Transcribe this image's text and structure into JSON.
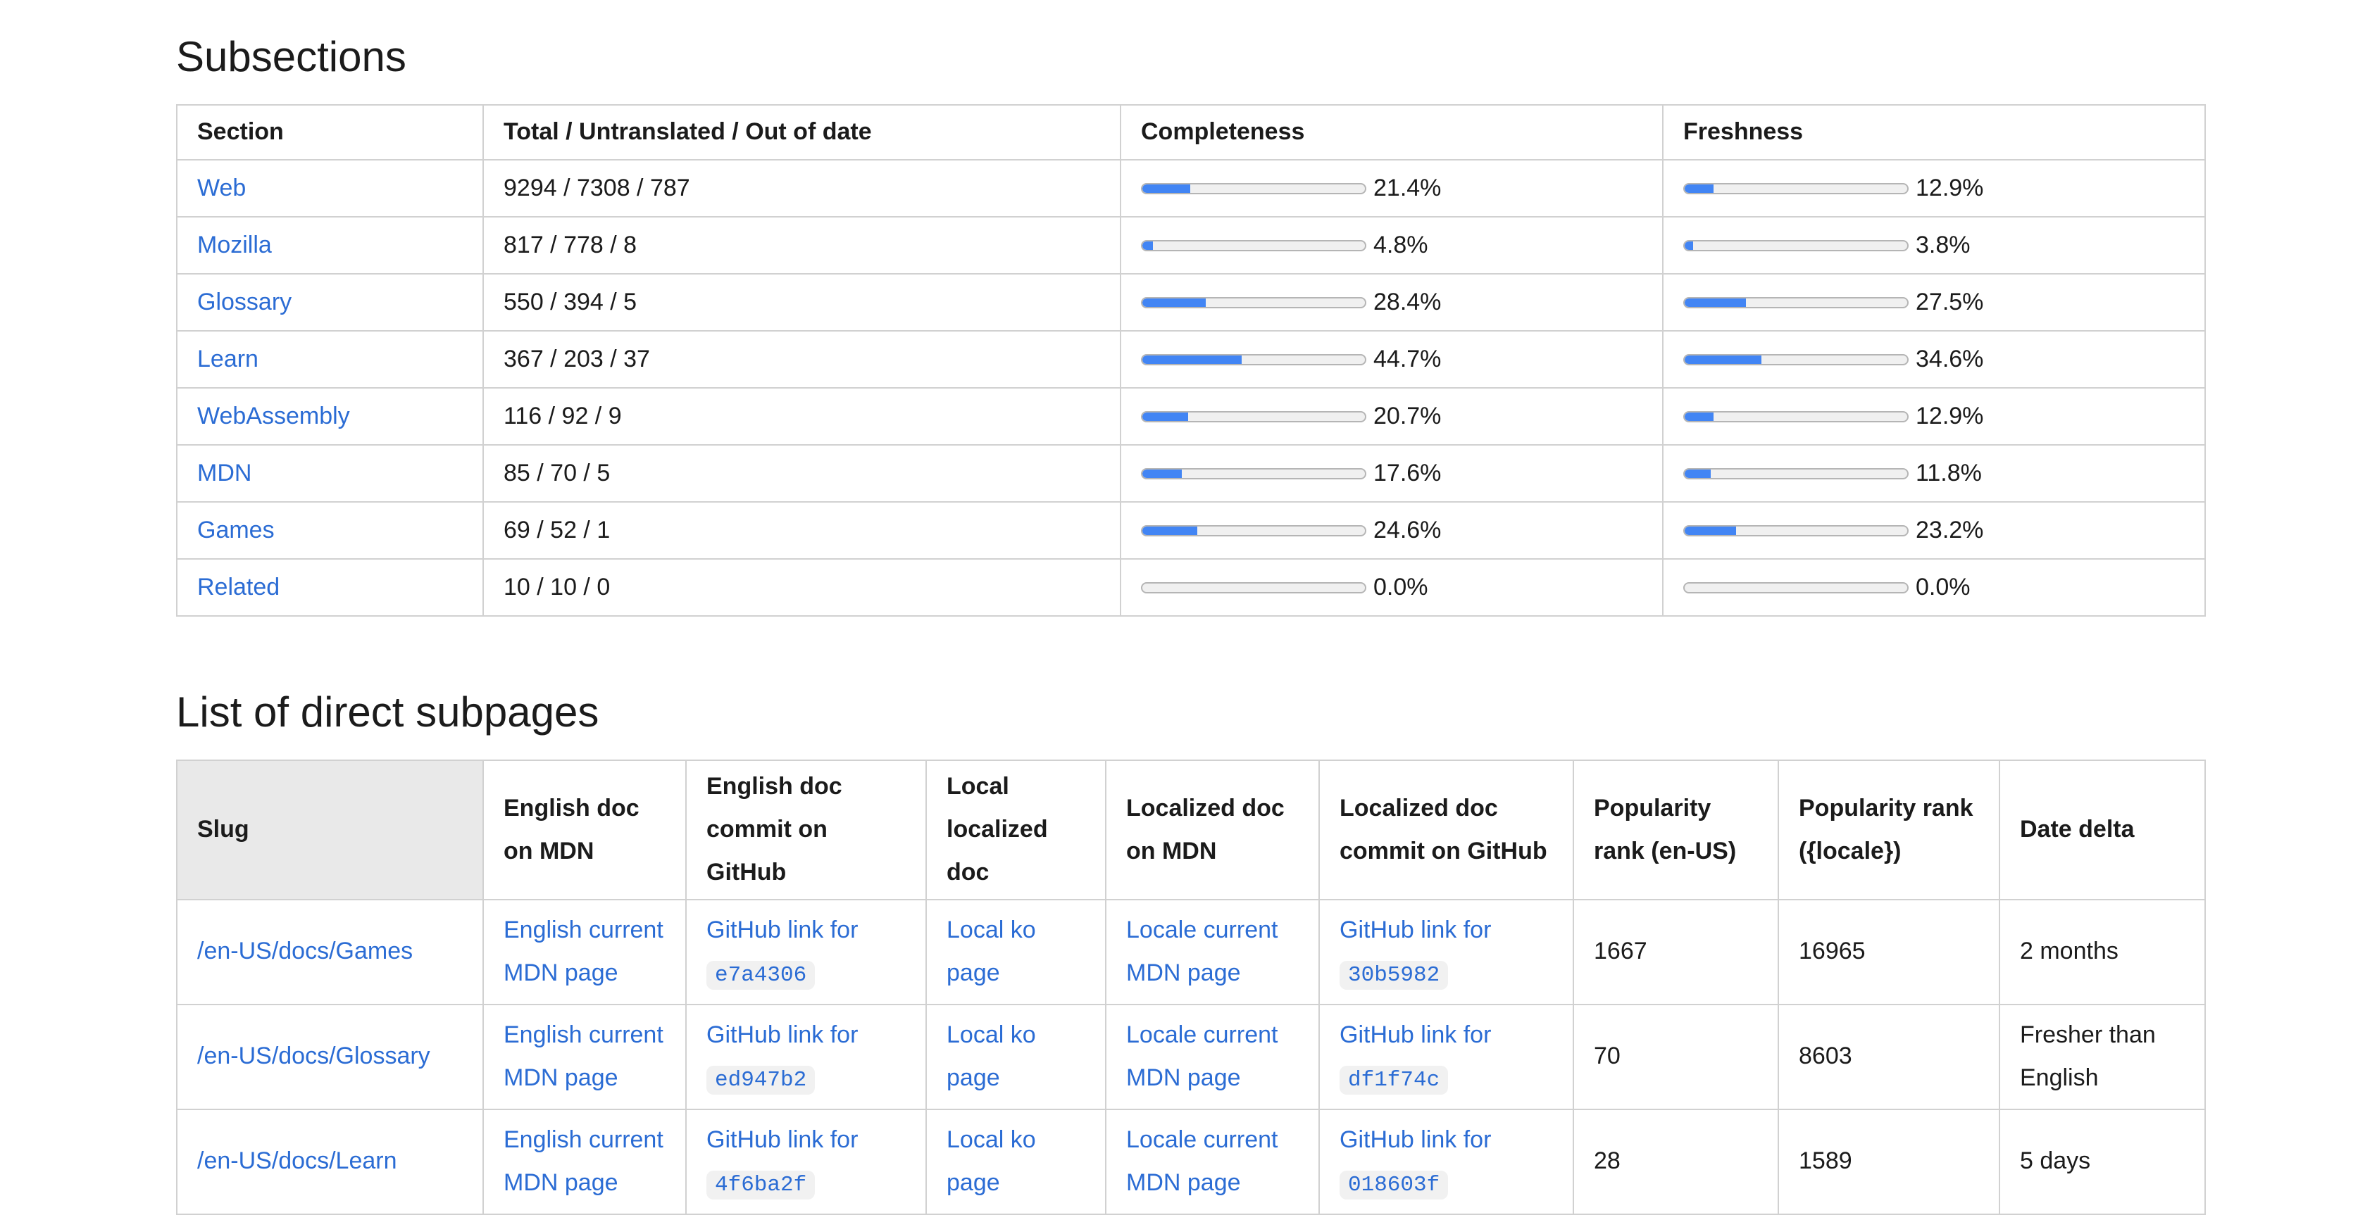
{
  "colors": {
    "link_blue": "#2b6cd4",
    "progress_fill_blue": "#4285f4",
    "progress_track_gray": "#f0f0f0",
    "table_border_gray": "#d1d1d1",
    "slug_header_gray": "#e9e9e9",
    "code_chip_gray": "#f1f1f1",
    "text_black": "#1b1b1b"
  },
  "sections_table": {
    "title": "Subsections",
    "headers": [
      "Section",
      "Total / Untranslated / Out of date",
      "Completeness",
      "Freshness"
    ],
    "rows": [
      {
        "section": "Web",
        "counts": "9294 / 7308 / 787",
        "completeness_pct": 21.4,
        "completeness_label": "21.4%",
        "freshness_pct": 12.9,
        "freshness_label": "12.9%"
      },
      {
        "section": "Mozilla",
        "counts": "817 / 778 / 8",
        "completeness_pct": 4.8,
        "completeness_label": "4.8%",
        "freshness_pct": 3.8,
        "freshness_label": "3.8%"
      },
      {
        "section": "Glossary",
        "counts": "550 / 394 / 5",
        "completeness_pct": 28.4,
        "completeness_label": "28.4%",
        "freshness_pct": 27.5,
        "freshness_label": "27.5%"
      },
      {
        "section": "Learn",
        "counts": "367 / 203 / 37",
        "completeness_pct": 44.7,
        "completeness_label": "44.7%",
        "freshness_pct": 34.6,
        "freshness_label": "34.6%"
      },
      {
        "section": "WebAssembly",
        "counts": "116 / 92 / 9",
        "completeness_pct": 20.7,
        "completeness_label": "20.7%",
        "freshness_pct": 12.9,
        "freshness_label": "12.9%"
      },
      {
        "section": "MDN",
        "counts": "85 / 70 / 5",
        "completeness_pct": 17.6,
        "completeness_label": "17.6%",
        "freshness_pct": 11.8,
        "freshness_label": "11.8%"
      },
      {
        "section": "Games",
        "counts": "69 / 52 / 1",
        "completeness_pct": 24.6,
        "completeness_label": "24.6%",
        "freshness_pct": 23.2,
        "freshness_label": "23.2%"
      },
      {
        "section": "Related",
        "counts": "10 / 10 / 0",
        "completeness_pct": 0.0,
        "completeness_label": "0.0%",
        "freshness_pct": 0.0,
        "freshness_label": "0.0%"
      }
    ]
  },
  "subpages_table": {
    "title": "List of direct subpages",
    "headers": [
      "Slug",
      "English doc on MDN",
      "English doc commit on GitHub",
      "Local localized doc",
      "Localized doc on MDN",
      "Localized doc commit on GitHub",
      "Popularity rank (en-US)",
      "Popularity rank ({locale})",
      "Date delta"
    ],
    "link_labels": {
      "english_doc": "English current MDN page",
      "commit_prefix": "GitHub link for",
      "local_doc": "Local ko page",
      "localized_doc": "Locale current MDN page"
    },
    "rows": [
      {
        "slug": "/en-US/docs/Games",
        "english_doc_link": "English current MDN page",
        "english_commit_prefix": "GitHub link for",
        "english_commit_hash": "e7a4306",
        "local_doc_link": "Local ko page",
        "localized_doc_link": "Locale current MDN page",
        "localized_commit_prefix": "GitHub link for",
        "localized_commit_hash": "30b5982",
        "popularity_rank_en_us": "1667",
        "popularity_rank_locale": "16965",
        "date_delta": "2 months"
      },
      {
        "slug": "/en-US/docs/Glossary",
        "english_doc_link": "English current MDN page",
        "english_commit_prefix": "GitHub link for",
        "english_commit_hash": "ed947b2",
        "local_doc_link": "Local ko page",
        "localized_doc_link": "Locale current MDN page",
        "localized_commit_prefix": "GitHub link for",
        "localized_commit_hash": "df1f74c",
        "popularity_rank_en_us": "70",
        "popularity_rank_locale": "8603",
        "date_delta": "Fresher than English"
      },
      {
        "slug": "/en-US/docs/Learn",
        "english_doc_link": "English current MDN page",
        "english_commit_prefix": "GitHub link for",
        "english_commit_hash": "4f6ba2f",
        "local_doc_link": "Local ko page",
        "localized_doc_link": "Locale current MDN page",
        "localized_commit_prefix": "GitHub link for",
        "localized_commit_hash": "018603f",
        "popularity_rank_en_us": "28",
        "popularity_rank_locale": "1589",
        "date_delta": "5 days"
      }
    ]
  }
}
